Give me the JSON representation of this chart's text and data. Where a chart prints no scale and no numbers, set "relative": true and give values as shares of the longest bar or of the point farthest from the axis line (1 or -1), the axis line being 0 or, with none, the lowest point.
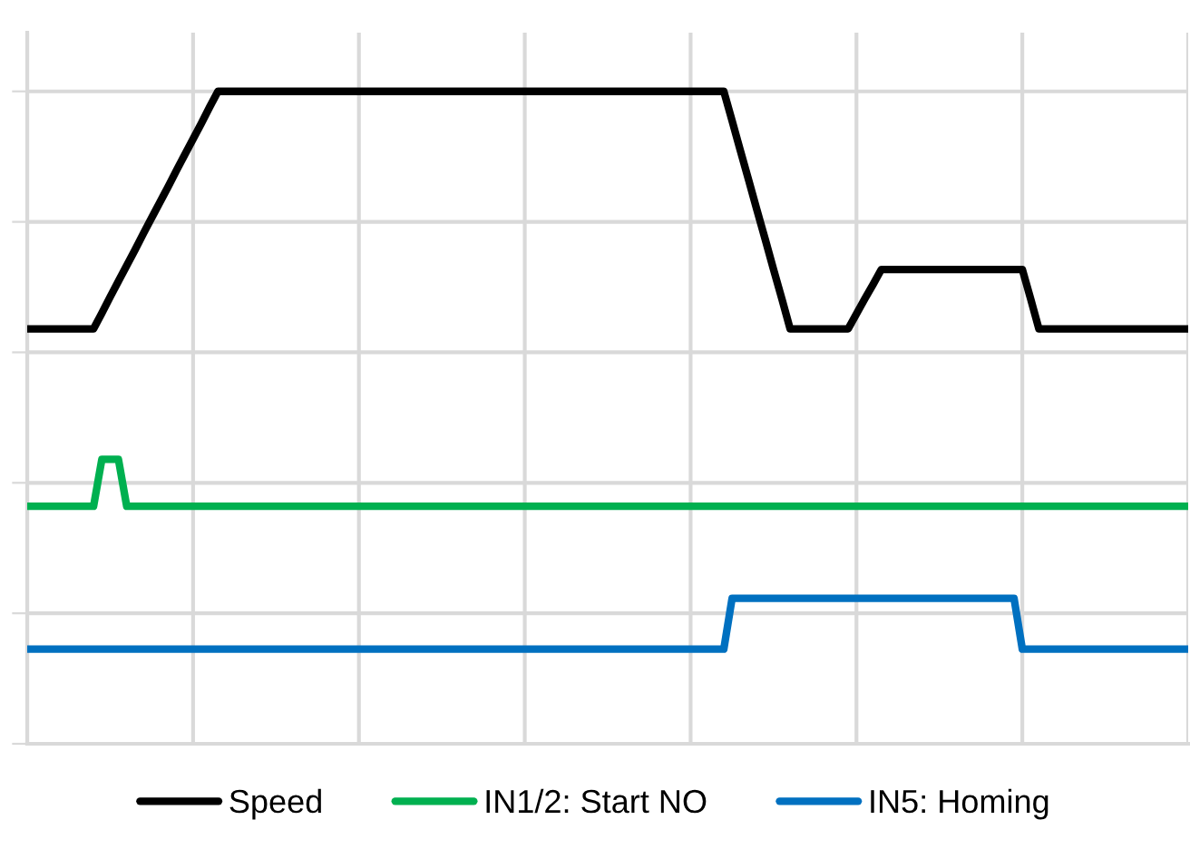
{
  "chart_data": {
    "type": "line",
    "relative": true,
    "categories": [
      null,
      null,
      null,
      null,
      null,
      null,
      null,
      null,
      null,
      null,
      null,
      null,
      null,
      null,
      null,
      null,
      null,
      null,
      null,
      null,
      null,
      null,
      null,
      null,
      null,
      null,
      null,
      null,
      null,
      null,
      null,
      null,
      null,
      null,
      null,
      null,
      null,
      null,
      null,
      null,
      null,
      null,
      null,
      null,
      null,
      null,
      null,
      null,
      null,
      null,
      null,
      null,
      null,
      null,
      null,
      null,
      null,
      null,
      null,
      null,
      null,
      null,
      null,
      null,
      null,
      null,
      null,
      null,
      null,
      null,
      null,
      null,
      null,
      null,
      null,
      null,
      null,
      null,
      null,
      null,
      null,
      null,
      null,
      null,
      null,
      null,
      null,
      null,
      null,
      null,
      null,
      null,
      null,
      null,
      null,
      null,
      null,
      null,
      null,
      null,
      null,
      null,
      null,
      null,
      null,
      null,
      null,
      null,
      null,
      null,
      null,
      null,
      null,
      null,
      null,
      null,
      null,
      null,
      null,
      null,
      null,
      null,
      null,
      null,
      null,
      null,
      null,
      null,
      null,
      null,
      null,
      null,
      null,
      null,
      null,
      null,
      null,
      null,
      null,
      null,
      null
    ],
    "tick_labels": false,
    "grid": true,
    "legend": "bottom",
    "marker": "none",
    "line_style": "solid",
    "series": [
      {
        "name": "Speed",
        "color": "#000000",
        "values": [
          0.636,
          0.636,
          0.636,
          0.636,
          0.636,
          0.636,
          0.636,
          0.636,
          0.636,
          0.66,
          0.685,
          0.709,
          0.733,
          0.757,
          0.782,
          0.806,
          0.83,
          0.854,
          0.879,
          0.903,
          0.927,
          0.951,
          0.976,
          1,
          1,
          1,
          1,
          1,
          1,
          1,
          1,
          1,
          1,
          1,
          1,
          1,
          1,
          1,
          1,
          1,
          1,
          1,
          1,
          1,
          1,
          1,
          1,
          1,
          1,
          1,
          1,
          1,
          1,
          1,
          1,
          1,
          1,
          1,
          1,
          1,
          1,
          1,
          1,
          1,
          1,
          1,
          1,
          1,
          1,
          1,
          1,
          1,
          1,
          1,
          1,
          1,
          1,
          1,
          1,
          1,
          1,
          1,
          1,
          1,
          1,
          0.955,
          0.909,
          0.864,
          0.818,
          0.773,
          0.727,
          0.682,
          0.636,
          0.636,
          0.636,
          0.636,
          0.636,
          0.636,
          0.636,
          0.636,
          0.659,
          0.682,
          0.704,
          0.727,
          0.727,
          0.727,
          0.727,
          0.727,
          0.727,
          0.727,
          0.727,
          0.727,
          0.727,
          0.727,
          0.727,
          0.727,
          0.727,
          0.727,
          0.727,
          0.727,
          0.727,
          0.682,
          0.636,
          0.636,
          0.636,
          0.636,
          0.636,
          0.636,
          0.636,
          0.636,
          0.636,
          0.636,
          0.636,
          0.636,
          0.636,
          0.636,
          0.636,
          0.636,
          0.636,
          0.636,
          0.636
        ]
      },
      {
        "name": "IN1/2: Start NO",
        "color": "#00b050",
        "values": [
          0.364,
          0.364,
          0.364,
          0.364,
          0.364,
          0.364,
          0.364,
          0.364,
          0.364,
          0.436,
          0.436,
          0.436,
          0.364,
          0.364,
          0.364,
          0.364,
          0.364,
          0.364,
          0.364,
          0.364,
          0.364,
          0.364,
          0.364,
          0.364,
          0.364,
          0.364,
          0.364,
          0.364,
          0.364,
          0.364,
          0.364,
          0.364,
          0.364,
          0.364,
          0.364,
          0.364,
          0.364,
          0.364,
          0.364,
          0.364,
          0.364,
          0.364,
          0.364,
          0.364,
          0.364,
          0.364,
          0.364,
          0.364,
          0.364,
          0.364,
          0.364,
          0.364,
          0.364,
          0.364,
          0.364,
          0.364,
          0.364,
          0.364,
          0.364,
          0.364,
          0.364,
          0.364,
          0.364,
          0.364,
          0.364,
          0.364,
          0.364,
          0.364,
          0.364,
          0.364,
          0.364,
          0.364,
          0.364,
          0.364,
          0.364,
          0.364,
          0.364,
          0.364,
          0.364,
          0.364,
          0.364,
          0.364,
          0.364,
          0.364,
          0.364,
          0.364,
          0.364,
          0.364,
          0.364,
          0.364,
          0.364,
          0.364,
          0.364,
          0.364,
          0.364,
          0.364,
          0.364,
          0.364,
          0.364,
          0.364,
          0.364,
          0.364,
          0.364,
          0.364,
          0.364,
          0.364,
          0.364,
          0.364,
          0.364,
          0.364,
          0.364,
          0.364,
          0.364,
          0.364,
          0.364,
          0.364,
          0.364,
          0.364,
          0.364,
          0.364,
          0.364,
          0.364,
          0.364,
          0.364,
          0.364,
          0.364,
          0.364,
          0.364,
          0.364,
          0.364,
          0.364,
          0.364,
          0.364,
          0.364,
          0.364,
          0.364,
          0.364,
          0.364,
          0.364,
          0.364,
          0.364
        ]
      },
      {
        "name": "IN5: Homing",
        "color": "#0070c0",
        "values": [
          0.145,
          0.145,
          0.145,
          0.145,
          0.145,
          0.145,
          0.145,
          0.145,
          0.145,
          0.145,
          0.145,
          0.145,
          0.145,
          0.145,
          0.145,
          0.145,
          0.145,
          0.145,
          0.145,
          0.145,
          0.145,
          0.145,
          0.145,
          0.145,
          0.145,
          0.145,
          0.145,
          0.145,
          0.145,
          0.145,
          0.145,
          0.145,
          0.145,
          0.145,
          0.145,
          0.145,
          0.145,
          0.145,
          0.145,
          0.145,
          0.145,
          0.145,
          0.145,
          0.145,
          0.145,
          0.145,
          0.145,
          0.145,
          0.145,
          0.145,
          0.145,
          0.145,
          0.145,
          0.145,
          0.145,
          0.145,
          0.145,
          0.145,
          0.145,
          0.145,
          0.145,
          0.145,
          0.145,
          0.145,
          0.145,
          0.145,
          0.145,
          0.145,
          0.145,
          0.145,
          0.145,
          0.145,
          0.145,
          0.145,
          0.145,
          0.145,
          0.145,
          0.145,
          0.145,
          0.145,
          0.145,
          0.145,
          0.145,
          0.145,
          0.145,
          0.223,
          0.223,
          0.223,
          0.223,
          0.223,
          0.223,
          0.223,
          0.223,
          0.223,
          0.223,
          0.223,
          0.223,
          0.223,
          0.223,
          0.223,
          0.223,
          0.223,
          0.223,
          0.223,
          0.223,
          0.223,
          0.223,
          0.223,
          0.223,
          0.223,
          0.223,
          0.223,
          0.223,
          0.223,
          0.223,
          0.223,
          0.223,
          0.223,
          0.223,
          0.223,
          0.145,
          0.145,
          0.145,
          0.145,
          0.145,
          0.145,
          0.145,
          0.145,
          0.145,
          0.145,
          0.145,
          0.145,
          0.145,
          0.145,
          0.145,
          0.145,
          0.145,
          0.145,
          0.145,
          0.145,
          0.145
        ]
      }
    ]
  }
}
